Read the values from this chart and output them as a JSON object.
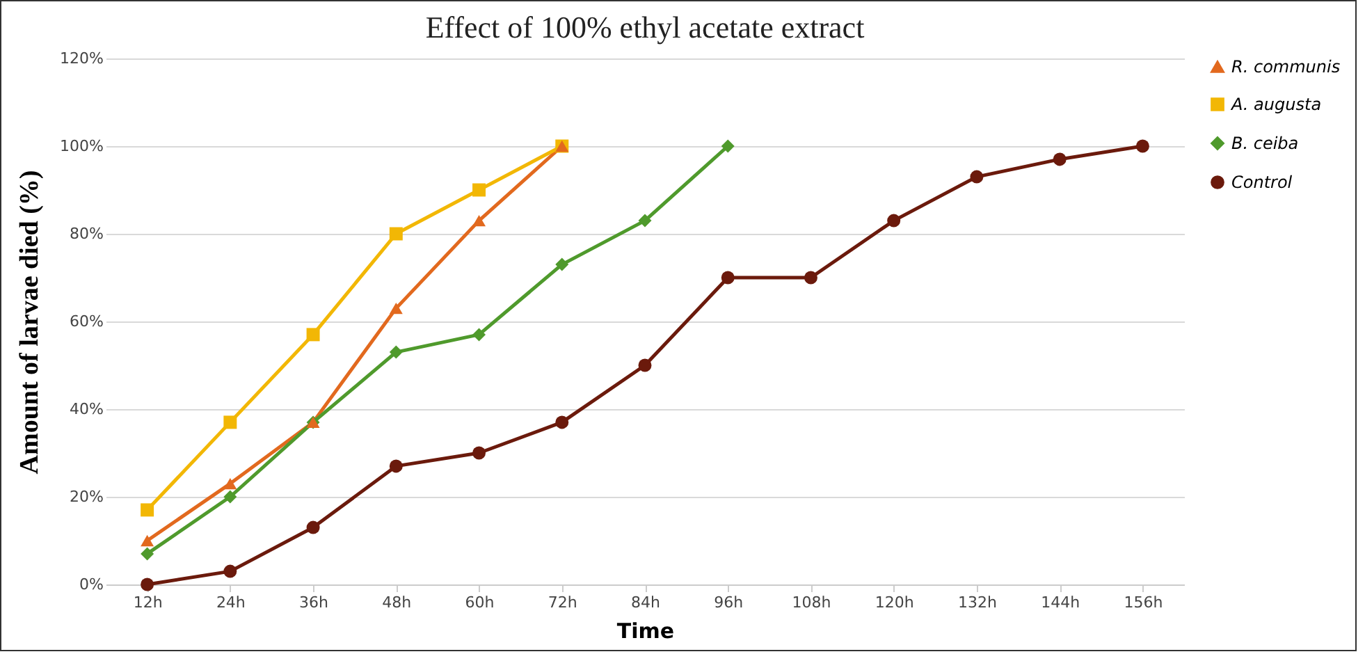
{
  "chart_data": {
    "type": "line",
    "title": "Effect of 100% ethyl acetate extract",
    "xlabel": "Time",
    "ylabel": "Amount of larvae died (%)",
    "categories": [
      "12h",
      "24h",
      "36h",
      "48h",
      "60h",
      "72h",
      "84h",
      "96h",
      "108h",
      "120h",
      "132h",
      "144h",
      "156h"
    ],
    "series": [
      {
        "name": "R. communis",
        "color": "#e2691e",
        "marker": "triangle",
        "values": [
          10,
          23,
          37,
          63,
          83,
          100,
          null,
          null,
          null,
          null,
          null,
          null,
          null
        ]
      },
      {
        "name": "A. augusta",
        "color": "#f2b705",
        "marker": "square",
        "values": [
          17,
          37,
          57,
          80,
          90,
          100,
          null,
          null,
          null,
          null,
          null,
          null,
          null
        ]
      },
      {
        "name": "B. ceiba",
        "color": "#4f9a2c",
        "marker": "diamond",
        "values": [
          7,
          20,
          37,
          53,
          57,
          73,
          83,
          100,
          null,
          null,
          null,
          null,
          null
        ]
      },
      {
        "name": "Control",
        "color": "#6b1a0c",
        "marker": "circle",
        "values": [
          0,
          3,
          13,
          27,
          30,
          37,
          50,
          70,
          70,
          83,
          93,
          97,
          100
        ]
      }
    ],
    "ylim": [
      0,
      120
    ],
    "yticks": [
      {
        "value": 0,
        "label": "0%"
      },
      {
        "value": 20,
        "label": "20%"
      },
      {
        "value": 40,
        "label": "40%"
      },
      {
        "value": 60,
        "label": "60%"
      },
      {
        "value": 80,
        "label": "80%"
      },
      {
        "value": 100,
        "label": "100%"
      },
      {
        "value": 120,
        "label": "120%"
      }
    ],
    "grid": "y",
    "legend": "right"
  }
}
